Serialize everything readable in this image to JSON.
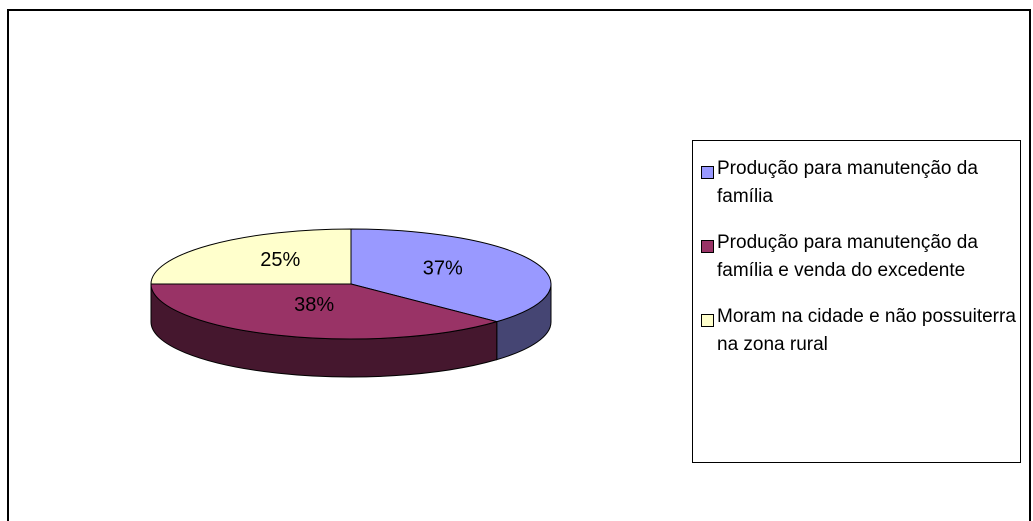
{
  "chart_data": {
    "type": "pie",
    "categories": [
      "Produção para manutenção da família",
      "Produção para manutenção da família e venda do excedente",
      "Moram na cidade e não possuiterra na zona rural"
    ],
    "values": [
      37,
      38,
      25
    ],
    "value_labels": [
      "37%",
      "38%",
      "25%"
    ],
    "colors": [
      "#9999ff",
      "#993366",
      "#ffffcc"
    ],
    "legend": "right"
  }
}
